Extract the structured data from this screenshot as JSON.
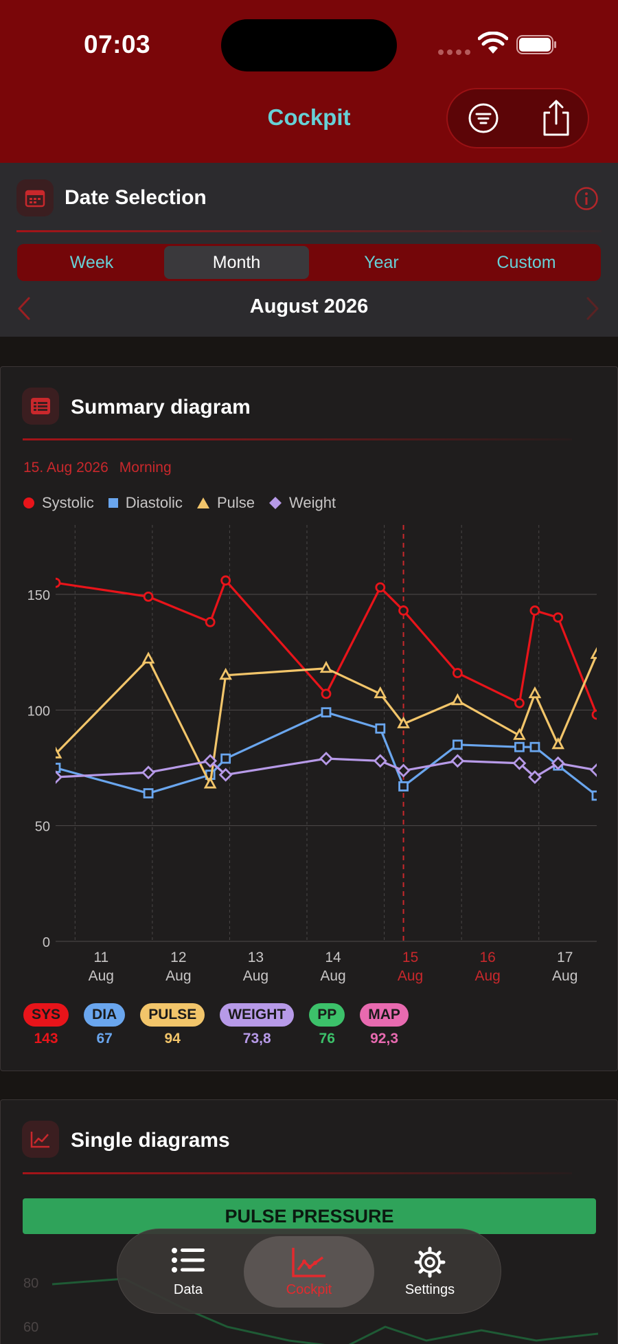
{
  "status_bar": {
    "time": "07:03"
  },
  "nav": {
    "title": "Cockpit"
  },
  "date_selection": {
    "title": "Date Selection",
    "segments": [
      "Week",
      "Month",
      "Year",
      "Custom"
    ],
    "selected_segment": "Month",
    "period_label": "August 2026"
  },
  "summary": {
    "title": "Summary diagram",
    "selected_date": "15. Aug 2026",
    "selected_time": "Morning",
    "legend": [
      "Systolic",
      "Diastolic",
      "Pulse",
      "Weight"
    ],
    "chips": [
      {
        "label": "SYS",
        "value": "143",
        "color": "#e8141a"
      },
      {
        "label": "DIA",
        "value": "67",
        "color": "#6aa6ee"
      },
      {
        "label": "PULSE",
        "value": "94",
        "color": "#f2c56a"
      },
      {
        "label": "WEIGHT",
        "value": "73,8",
        "color": "#b79ae8"
      },
      {
        "label": "PP",
        "value": "76",
        "color": "#3cc16a"
      },
      {
        "label": "MAP",
        "value": "92,3",
        "color": "#e86ab0"
      }
    ]
  },
  "chart_data": {
    "type": "line",
    "ylim": [
      0,
      180
    ],
    "yticks": [
      "0",
      "50",
      "100",
      "150"
    ],
    "xticks": [
      {
        "day": "11",
        "month": "Aug",
        "x": 11,
        "color": "#c8c6c6"
      },
      {
        "day": "12",
        "month": "Aug",
        "x": 12,
        "color": "#c8c6c6"
      },
      {
        "day": "13",
        "month": "Aug",
        "x": 13,
        "color": "#c8c6c6"
      },
      {
        "day": "14",
        "month": "Aug",
        "x": 14,
        "color": "#c8c6c6"
      },
      {
        "day": "15",
        "month": "Aug",
        "x": 15,
        "color": "#c9282c"
      },
      {
        "day": "16",
        "month": "Aug",
        "x": 16,
        "color": "#c9282c"
      },
      {
        "day": "17",
        "month": "Aug",
        "x": 17,
        "color": "#c8c6c6"
      }
    ],
    "xlim": [
      10.5,
      17.5
    ],
    "selected_x": 15,
    "series": [
      {
        "name": "Systolic",
        "color": "#e8141a",
        "marker": "circle",
        "points": [
          [
            10.5,
            155
          ],
          [
            11.7,
            149
          ],
          [
            12.5,
            138
          ],
          [
            12.7,
            156
          ],
          [
            14.0,
            107
          ],
          [
            14.7,
            153
          ],
          [
            15.0,
            143
          ],
          [
            15.7,
            116
          ],
          [
            16.5,
            103
          ],
          [
            16.7,
            143
          ],
          [
            17.0,
            140
          ],
          [
            17.5,
            98
          ]
        ]
      },
      {
        "name": "Diastolic",
        "color": "#6aa6ee",
        "marker": "square",
        "points": [
          [
            10.5,
            75
          ],
          [
            11.7,
            64
          ],
          [
            12.5,
            72
          ],
          [
            12.7,
            79
          ],
          [
            14.0,
            99
          ],
          [
            14.7,
            92
          ],
          [
            15.0,
            67
          ],
          [
            15.7,
            85
          ],
          [
            16.5,
            84
          ],
          [
            16.7,
            84
          ],
          [
            17.0,
            76
          ],
          [
            17.5,
            63
          ]
        ]
      },
      {
        "name": "Pulse",
        "color": "#f2c56a",
        "marker": "triangle",
        "points": [
          [
            10.5,
            81
          ],
          [
            11.7,
            122
          ],
          [
            12.5,
            68
          ],
          [
            12.7,
            115
          ],
          [
            14.0,
            118
          ],
          [
            14.7,
            107
          ],
          [
            15.0,
            94
          ],
          [
            15.7,
            104
          ],
          [
            16.5,
            89
          ],
          [
            16.7,
            107
          ],
          [
            17.0,
            85
          ],
          [
            17.5,
            124
          ]
        ]
      },
      {
        "name": "Weight",
        "color": "#b79ae8",
        "marker": "diamond",
        "points": [
          [
            10.5,
            71
          ],
          [
            11.7,
            73
          ],
          [
            12.5,
            78
          ],
          [
            12.7,
            72
          ],
          [
            14.0,
            79
          ],
          [
            14.7,
            78
          ],
          [
            15.0,
            73.8
          ],
          [
            15.7,
            78
          ],
          [
            16.5,
            77
          ],
          [
            16.7,
            71
          ],
          [
            17.0,
            77
          ],
          [
            17.5,
            74
          ]
        ]
      }
    ]
  },
  "single_diagrams": {
    "title": "Single diagrams",
    "bar_label": "PULSE PRESSURE",
    "yticks": [
      "80",
      "60"
    ]
  },
  "tabbar": {
    "items": [
      {
        "label": "Data"
      },
      {
        "label": "Cockpit"
      },
      {
        "label": "Settings"
      }
    ],
    "active": "Cockpit"
  },
  "colors": {
    "accent": "#7a0609",
    "teal": "#67d0d6",
    "red": "#e32a2e"
  }
}
